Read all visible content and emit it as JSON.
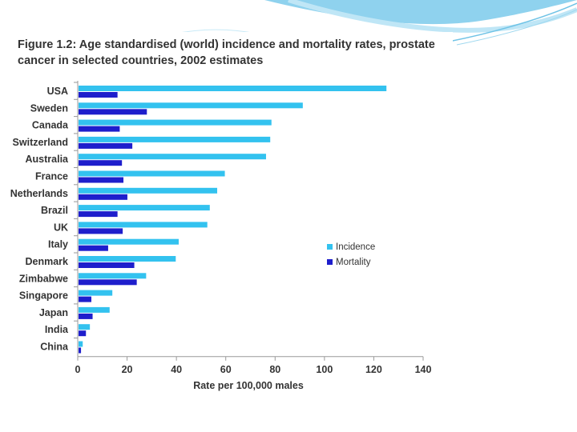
{
  "figure": {
    "title": "Figure 1.2: Age standardised (world) incidence and mortality rates, prostate cancer in selected countries, 2002 estimates"
  },
  "chart_data": {
    "type": "bar",
    "orientation": "horizontal",
    "title": "Figure 1.2: Age standardised (world) incidence and mortality rates, prostate cancer in selected countries, 2002 estimates",
    "xlabel": "Rate per 100,000 males",
    "ylabel": "",
    "xlim": [
      0,
      140
    ],
    "xticks": [
      0,
      20,
      40,
      60,
      80,
      100,
      120,
      140
    ],
    "grid": false,
    "legend_position": "right",
    "categories": [
      "USA",
      "Sweden",
      "Canada",
      "Switzerland",
      "Australia",
      "France",
      "Netherlands",
      "Brazil",
      "UK",
      "Italy",
      "Denmark",
      "Zimbabwe",
      "Singapore",
      "Japan",
      "India",
      "China"
    ],
    "series": [
      {
        "name": "Incidence",
        "color": "#33c2ef",
        "values": [
          124.8,
          90.9,
          78.2,
          77.7,
          76.0,
          59.3,
          56.2,
          53.2,
          52.2,
          40.6,
          39.4,
          27.4,
          13.7,
          12.6,
          4.6,
          1.7
        ]
      },
      {
        "name": "Mortality",
        "color": "#1e1ecc",
        "values": [
          15.8,
          27.7,
          16.7,
          21.8,
          17.6,
          18.2,
          19.8,
          15.8,
          17.9,
          12.0,
          22.6,
          23.6,
          5.2,
          5.7,
          3.0,
          1.0
        ]
      }
    ]
  }
}
